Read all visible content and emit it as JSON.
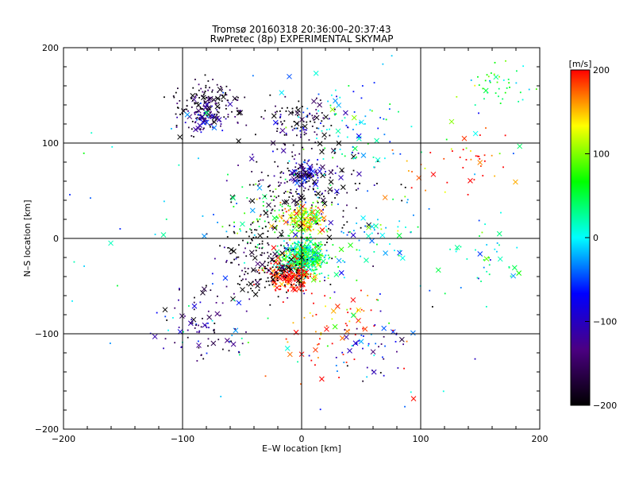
{
  "chart_data": {
    "type": "scatter",
    "title": "Tromsø 20160318 20:36:00–20:37:43",
    "subtitle": "RwPretec (8p) EXPERIMENTAL SKYMAP",
    "xlabel": "E–W location [km]",
    "ylabel": "N–S location [km]",
    "xlim": [
      -200,
      200
    ],
    "ylim": [
      -200,
      200
    ],
    "xticks": [
      -200,
      -100,
      0,
      100,
      200
    ],
    "yticks": [
      -200,
      -100,
      0,
      100,
      200
    ],
    "xtick_labels": [
      "−200",
      "−100",
      "0",
      "100",
      "200"
    ],
    "ytick_labels": [
      "−200",
      "−100",
      "0",
      "100",
      "200"
    ],
    "grid": true,
    "markers": [
      "dot",
      "x"
    ],
    "colorbar": {
      "label": "[m/s]",
      "range": [
        -200,
        200
      ],
      "ticks": [
        200,
        100,
        0,
        -100,
        -200
      ],
      "tick_labels": [
        "200",
        "100",
        "0",
        "−100",
        "−200"
      ],
      "colormap": [
        "#000000",
        "#4b0082",
        "#0000ff",
        "#00ffff",
        "#00ff00",
        "#ffff00",
        "#ff0000"
      ],
      "placement": "right"
    },
    "clusters": [
      {
        "x": 2,
        "y": -20,
        "spread": 10,
        "count": 500,
        "velocity": 40
      },
      {
        "x": 3,
        "y": 20,
        "spread": 9,
        "count": 200,
        "velocity": 120
      },
      {
        "x": 2,
        "y": 68,
        "spread": 7,
        "count": 140,
        "velocity": -120
      },
      {
        "x": -10,
        "y": -38,
        "spread": 10,
        "count": 200,
        "velocity": 200
      },
      {
        "x": -25,
        "y": -35,
        "spread": 18,
        "count": 140,
        "velocity": -200
      },
      {
        "x": -80,
        "y": 140,
        "spread": 14,
        "count": 170,
        "velocity": -180
      },
      {
        "x": -80,
        "y": 125,
        "spread": 8,
        "count": 60,
        "velocity": -110
      },
      {
        "x": 0,
        "y": 120,
        "spread": 15,
        "count": 110,
        "velocity": -170
      },
      {
        "x": 40,
        "y": 120,
        "spread": 25,
        "count": 80,
        "velocity": 0
      },
      {
        "x": 160,
        "y": 160,
        "spread": 15,
        "count": 40,
        "velocity": 60
      },
      {
        "x": 160,
        "y": -20,
        "spread": 15,
        "count": 35,
        "velocity": 10
      },
      {
        "x": 150,
        "y": 90,
        "spread": 15,
        "count": 25,
        "velocity": 200
      },
      {
        "x": -80,
        "y": -90,
        "spread": 20,
        "count": 90,
        "velocity": -140
      },
      {
        "x": 30,
        "y": -100,
        "spread": 25,
        "count": 70,
        "velocity": 180
      },
      {
        "x": 60,
        "y": -110,
        "spread": 20,
        "count": 50,
        "velocity": -100
      },
      {
        "x": -30,
        "y": 20,
        "spread": 20,
        "count": 60,
        "velocity": 50
      },
      {
        "x": 10,
        "y": 40,
        "spread": 30,
        "count": 120,
        "velocity": -200
      },
      {
        "x": -10,
        "y": 60,
        "spread": 20,
        "count": 60,
        "velocity": -180
      },
      {
        "x": 60,
        "y": 10,
        "spread": 20,
        "count": 40,
        "velocity": 20
      },
      {
        "x": -40,
        "y": -10,
        "spread": 15,
        "count": 60,
        "velocity": -200
      },
      {
        "x": 0,
        "y": 0,
        "spread": 90,
        "count": 140,
        "velocity": 0
      },
      {
        "x": 110,
        "y": 70,
        "spread": 20,
        "count": 20,
        "velocity": 180
      }
    ]
  }
}
